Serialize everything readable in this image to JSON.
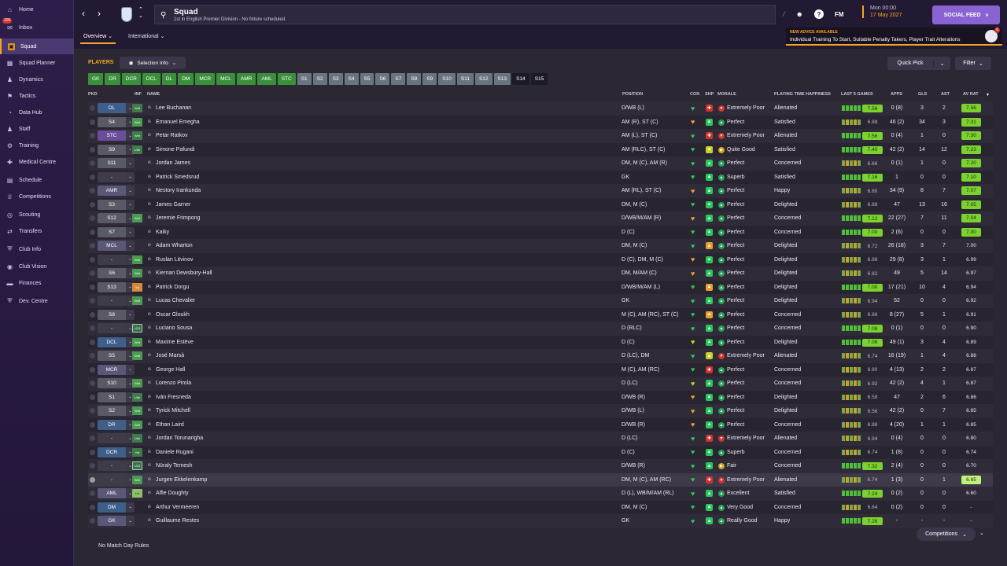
{
  "sidebar": {
    "inbox_badge": "100",
    "items": [
      {
        "label": "Home",
        "icon": "home-icon",
        "glyph": "⌂",
        "active": false
      },
      {
        "label": "Inbox",
        "icon": "inbox-icon",
        "glyph": "✉",
        "active": false
      },
      {
        "label": "Squad",
        "icon": "squad-icon",
        "glyph": "▣",
        "active": true
      },
      {
        "label": "Squad Planner",
        "icon": "squad-planner-icon",
        "glyph": "▦",
        "active": false
      },
      {
        "label": "Dynamics",
        "icon": "dynamics-icon",
        "glyph": "♟",
        "active": false
      },
      {
        "label": "Tactics",
        "icon": "tactics-icon",
        "glyph": "⚑",
        "active": false
      },
      {
        "label": "Data Hub",
        "icon": "data-hub-icon",
        "glyph": "◔",
        "active": false
      },
      {
        "label": "Staff",
        "icon": "staff-icon",
        "glyph": "♟",
        "active": false
      },
      {
        "label": "Training",
        "icon": "training-icon",
        "glyph": "⚙",
        "active": false
      },
      {
        "label": "Medical Centre",
        "icon": "medical-icon",
        "glyph": "✚",
        "active": false
      },
      {
        "label": "Schedule",
        "icon": "schedule-icon",
        "glyph": "▤",
        "active": false
      },
      {
        "label": "Competitions",
        "icon": "trophy-icon",
        "glyph": "♕",
        "active": false
      },
      {
        "label": "Scouting",
        "icon": "scouting-icon",
        "glyph": "◎",
        "active": false
      },
      {
        "label": "Transfers",
        "icon": "transfers-icon",
        "glyph": "⇄",
        "active": false
      },
      {
        "label": "Club Info",
        "icon": "club-info-icon",
        "glyph": "⛨",
        "active": false
      },
      {
        "label": "Club Vision",
        "icon": "club-vision-icon",
        "glyph": "◉",
        "active": false
      },
      {
        "label": "Finances",
        "icon": "finances-icon",
        "glyph": "▬",
        "active": false
      },
      {
        "label": "Dev. Centre",
        "icon": "dev-centre-icon",
        "glyph": "⛨",
        "active": false
      }
    ]
  },
  "header": {
    "title": "Squad",
    "subtitle": "1st in English Premier Division - No fixture scheduled.",
    "fm_logo": "FM",
    "help": "?",
    "date_day": "Mon 00:00",
    "date_full": "17 May 2027",
    "social_feed": "SOCIAL FEED",
    "advice_heading": "NEW ADVICE AVAILABLE",
    "advice_text": "Individual Training To Start, Suitable Penalty Takers, Player Trait Alterations",
    "advice_badge": "6",
    "tabs": [
      "Overview",
      "International"
    ]
  },
  "toolbar": {
    "players_label": "PLAYERS",
    "selection_info": "Selection Info",
    "quick_pick": "Quick Pick",
    "filter": "Filter"
  },
  "positions": [
    {
      "label": "GK",
      "kind": "g"
    },
    {
      "label": "DR",
      "kind": "g"
    },
    {
      "label": "DCR",
      "kind": "g"
    },
    {
      "label": "DCL",
      "kind": "g"
    },
    {
      "label": "DL",
      "kind": "g"
    },
    {
      "label": "DM",
      "kind": "g"
    },
    {
      "label": "MCR",
      "kind": "g"
    },
    {
      "label": "MCL",
      "kind": "g"
    },
    {
      "label": "AMR",
      "kind": "g"
    },
    {
      "label": "AML",
      "kind": "g"
    },
    {
      "label": "STC",
      "kind": "g"
    },
    {
      "label": "S1",
      "kind": "s"
    },
    {
      "label": "S2",
      "kind": "s"
    },
    {
      "label": "S3",
      "kind": "s"
    },
    {
      "label": "S4",
      "kind": "s"
    },
    {
      "label": "S5",
      "kind": "s"
    },
    {
      "label": "S6",
      "kind": "s"
    },
    {
      "label": "S7",
      "kind": "s"
    },
    {
      "label": "S8",
      "kind": "s"
    },
    {
      "label": "S9",
      "kind": "s"
    },
    {
      "label": "S10",
      "kind": "s"
    },
    {
      "label": "S11",
      "kind": "s"
    },
    {
      "label": "S12",
      "kind": "s"
    },
    {
      "label": "S13",
      "kind": "s"
    },
    {
      "label": "S14",
      "kind": "a"
    },
    {
      "label": "S15",
      "kind": "a"
    }
  ],
  "columns": {
    "pkd": "PKD",
    "inf": "INF",
    "name": "NAME",
    "position": "POSITION",
    "con": "CON",
    "shp": "SHP",
    "morale": "MORALE",
    "pth": "PLAYING TIME HAPPINESS",
    "last5": "LAST 5 GAMES",
    "apps": "APPS",
    "gls": "GLS",
    "ast": "AST",
    "avrat": "AV RAT"
  },
  "colors": {
    "accent": "#f5a623",
    "social": "#8a63d2",
    "morale_good": "#27a05a",
    "morale_poor": "#d0342c",
    "morale_ok": "#d4a020",
    "avrat_high": "#7bd12e",
    "avrat_mid": "#bff27a"
  },
  "players": [
    {
      "pkd": "DL",
      "pkdkind": "def",
      "inf": "Wnt",
      "infkind": "un",
      "name": "Lee Buchanan",
      "pos": "D/WB (L)",
      "con": "g",
      "shp": "r",
      "mor": "Extremely Poor",
      "morkind": "poor",
      "pth": "Alienated",
      "l5": "7.56",
      "l5hl": true,
      "apps": "0 (8)",
      "gls": "3",
      "ast": "2",
      "avr": "7.56",
      "avrkind": "high"
    },
    {
      "pkd": "S4",
      "pkdkind": "sub",
      "inf": "Wnt",
      "infkind": "wnt",
      "name": "Emanuel Emegha",
      "pos": "AM (R), ST (C)",
      "con": "o",
      "shp": "g",
      "mor": "Perfect",
      "morkind": "good",
      "pth": "Satisfied",
      "l5": "6.88",
      "l5hl": false,
      "apps": "46 (2)",
      "gls": "34",
      "ast": "3",
      "avr": "7.31",
      "avrkind": "high"
    },
    {
      "pkd": "STC",
      "pkdkind": "att",
      "inf": "Wnt",
      "infkind": "un",
      "name": "Petar Ratkov",
      "pos": "AM (L), ST (C)",
      "con": "g",
      "shp": "r",
      "mor": "Extremely Poor",
      "morkind": "poor",
      "pth": "Alienated",
      "l5": "7.56",
      "l5hl": true,
      "apps": "0 (4)",
      "gls": "1",
      "ast": "0",
      "avr": "7.30",
      "avrkind": "high"
    },
    {
      "pkd": "S9",
      "pkdkind": "sub",
      "inf": "Unh",
      "infkind": "un",
      "name": "Simone Pafundi",
      "pos": "AM (RLC), ST (C)",
      "con": "g",
      "shp": "y",
      "mor": "Quite Good",
      "morkind": "ok",
      "pth": "Satisfied",
      "l5": "7.40",
      "l5hl": true,
      "apps": "42 (2)",
      "gls": "14",
      "ast": "12",
      "avr": "7.23",
      "avrkind": "high"
    },
    {
      "pkd": "S11",
      "pkdkind": "sub",
      "inf": "",
      "infkind": "",
      "name": "Jordan James",
      "pos": "DM, M (C), AM (R)",
      "con": "g",
      "shp": "g",
      "mor": "Perfect",
      "morkind": "good",
      "pth": "Concerned",
      "l5": "6.66",
      "l5hl": false,
      "apps": "0 (1)",
      "gls": "1",
      "ast": "0",
      "avr": "7.20",
      "avrkind": "high"
    },
    {
      "pkd": "-",
      "pkdkind": "none",
      "inf": "",
      "infkind": "",
      "name": "Patrick Smedsrud",
      "pos": "GK",
      "con": "g",
      "shp": "g",
      "mor": "Superb",
      "morkind": "good",
      "pth": "Satisfied",
      "l5": "7.16",
      "l5hl": true,
      "apps": "1",
      "gls": "0",
      "ast": "0",
      "avr": "7.10",
      "avrkind": "high"
    },
    {
      "pkd": "AMR",
      "pkdkind": "mid",
      "inf": "",
      "infkind": "",
      "name": "Nestory Irankunda",
      "pos": "AM (RL), ST (C)",
      "con": "o",
      "shp": "g",
      "mor": "Perfect",
      "morkind": "good",
      "pth": "Happy",
      "l5": "6.80",
      "l5hl": false,
      "apps": "34 (9)",
      "gls": "8",
      "ast": "7",
      "avr": "7.07",
      "avrkind": "high"
    },
    {
      "pkd": "S3",
      "pkdkind": "sub",
      "inf": "",
      "infkind": "",
      "name": "James Garner",
      "pos": "DM, M (C)",
      "con": "g",
      "shp": "g",
      "mor": "Perfect",
      "morkind": "good",
      "pth": "Delighted",
      "l5": "6.88",
      "l5hl": false,
      "apps": "47",
      "gls": "13",
      "ast": "16",
      "avr": "7.05",
      "avrkind": "high"
    },
    {
      "pkd": "S12",
      "pkdkind": "sub",
      "inf": "Wnt",
      "infkind": "wnt",
      "name": "Jeremie Frimpong",
      "pos": "D/WB/M/AM (R)",
      "con": "o",
      "shp": "g",
      "mor": "Perfect",
      "morkind": "good",
      "pth": "Concerned",
      "l5": "7.12",
      "l5hl": true,
      "apps": "22 (27)",
      "gls": "7",
      "ast": "11",
      "avr": "7.04",
      "avrkind": "high"
    },
    {
      "pkd": "S7",
      "pkdkind": "sub",
      "inf": "",
      "infkind": "",
      "name": "Kaiky",
      "pos": "D (C)",
      "con": "g",
      "shp": "g",
      "mor": "Perfect",
      "morkind": "good",
      "pth": "Concerned",
      "l5": "7.00",
      "l5hl": true,
      "apps": "2 (6)",
      "gls": "0",
      "ast": "0",
      "avr": "7.00",
      "avrkind": "high"
    },
    {
      "pkd": "MCL",
      "pkdkind": "mid",
      "inf": "",
      "infkind": "",
      "name": "Adam Wharton",
      "pos": "DM, M (C)",
      "con": "g",
      "shp": "o",
      "mor": "Perfect",
      "morkind": "good",
      "pth": "Delighted",
      "l5": "6.72",
      "l5hl": false,
      "apps": "26 (18)",
      "gls": "3",
      "ast": "7",
      "avr": "7.00",
      "avrkind": "none"
    },
    {
      "pkd": "-",
      "pkdkind": "none",
      "inf": "Wnt",
      "infkind": "wnt",
      "name": "Ruslan Litvinov",
      "pos": "D (C), DM, M (C)",
      "con": "o",
      "shp": "g",
      "mor": "Perfect",
      "morkind": "good",
      "pth": "Delighted",
      "l5": "6.88",
      "l5hl": false,
      "apps": "29 (8)",
      "gls": "3",
      "ast": "1",
      "avr": "6.99",
      "avrkind": "none"
    },
    {
      "pkd": "S6",
      "pkdkind": "sub",
      "inf": "Wnt",
      "infkind": "wnt",
      "name": "Kiernan Dewsbury-Hall",
      "pos": "DM, M/AM (C)",
      "con": "o",
      "shp": "g",
      "mor": "Perfect",
      "morkind": "good",
      "pth": "Delighted",
      "l5": "6.82",
      "l5hl": false,
      "apps": "49",
      "gls": "5",
      "ast": "14",
      "avr": "6.97",
      "avrkind": "none"
    },
    {
      "pkd": "S13",
      "pkdkind": "sub",
      "inf": "Inj",
      "infkind": "inj",
      "name": "Patrick Dorgu",
      "pos": "D/WB/M/AM (L)",
      "con": "g",
      "shp": "o",
      "mor": "Perfect",
      "morkind": "good",
      "pth": "Delighted",
      "l5": "7.00",
      "l5hl": true,
      "apps": "17 (21)",
      "gls": "10",
      "ast": "4",
      "avr": "6.94",
      "avrkind": "none"
    },
    {
      "pkd": "-",
      "pkdkind": "none",
      "inf": "Wnt",
      "infkind": "wnt",
      "name": "Lucas Chevalier",
      "pos": "GK",
      "con": "g",
      "shp": "g",
      "mor": "Perfect",
      "morkind": "good",
      "pth": "Delighted",
      "l5": "6.94",
      "l5hl": false,
      "apps": "52",
      "gls": "0",
      "ast": "0",
      "avr": "6.92",
      "avrkind": "none"
    },
    {
      "pkd": "S8",
      "pkdkind": "sub",
      "inf": "",
      "infkind": "",
      "name": "Oscar Gloukh",
      "pos": "M (C), AM (RC), ST (C)",
      "con": "g",
      "shp": "o",
      "mor": "Perfect",
      "morkind": "good",
      "pth": "Concerned",
      "l5": "6.86",
      "l5hl": false,
      "apps": "8 (27)",
      "gls": "5",
      "ast": "1",
      "avr": "6.91",
      "avrkind": "none"
    },
    {
      "pkd": "-",
      "pkdkind": "none",
      "inf": "U21",
      "infkind": "u21",
      "name": "Luciano Sousa",
      "pos": "D (RLC)",
      "con": "g",
      "shp": "g",
      "mor": "Perfect",
      "morkind": "good",
      "pth": "Concerned",
      "l5": "7.08",
      "l5hl": true,
      "apps": "0 (1)",
      "gls": "0",
      "ast": "0",
      "avr": "6.90",
      "avrkind": "none"
    },
    {
      "pkd": "DCL",
      "pkdkind": "def",
      "inf": "Wnt",
      "infkind": "wnt",
      "name": "Maxime Estève",
      "pos": "D (C)",
      "con": "y",
      "shp": "g",
      "mor": "Perfect",
      "morkind": "good",
      "pth": "Delighted",
      "l5": "7.06",
      "l5hl": true,
      "apps": "49 (1)",
      "gls": "3",
      "ast": "4",
      "avr": "6.89",
      "avrkind": "none"
    },
    {
      "pkd": "S5",
      "pkdkind": "sub",
      "inf": "Wnt",
      "infkind": "wnt",
      "name": "José Marsà",
      "pos": "D (LC), DM",
      "con": "g",
      "shp": "y",
      "mor": "Extremely Poor",
      "morkind": "poor",
      "pth": "Alienated",
      "l5": "6.74",
      "l5hl": false,
      "apps": "16 (19)",
      "gls": "1",
      "ast": "4",
      "avr": "6.88",
      "avrkind": "none"
    },
    {
      "pkd": "MCR",
      "pkdkind": "mid",
      "inf": "",
      "infkind": "",
      "name": "George Hall",
      "pos": "M (C), AM (RC)",
      "con": "g",
      "shp": "r",
      "mor": "Perfect",
      "morkind": "good",
      "pth": "Concerned",
      "l5": "6.80",
      "l5hl": false,
      "apps": "4 (13)",
      "gls": "2",
      "ast": "2",
      "avr": "6.87",
      "avrkind": "none"
    },
    {
      "pkd": "S10",
      "pkdkind": "sub",
      "inf": "Wnt",
      "infkind": "wnt",
      "name": "Lorenzo Pirola",
      "pos": "D (LC)",
      "con": "y",
      "shp": "g",
      "mor": "Perfect",
      "morkind": "good",
      "pth": "Concerned",
      "l5": "6.92",
      "l5hl": false,
      "apps": "42 (2)",
      "gls": "4",
      "ast": "1",
      "avr": "6.87",
      "avrkind": "none"
    },
    {
      "pkd": "S1",
      "pkdkind": "sub",
      "inf": "Unh",
      "infkind": "un",
      "name": "Iván Fresneda",
      "pos": "D/WB (R)",
      "con": "o",
      "shp": "g",
      "mor": "Perfect",
      "morkind": "good",
      "pth": "Delighted",
      "l5": "6.58",
      "l5hl": false,
      "apps": "47",
      "gls": "2",
      "ast": "6",
      "avr": "6.86",
      "avrkind": "none"
    },
    {
      "pkd": "S2",
      "pkdkind": "sub",
      "inf": "Wnt",
      "infkind": "wnt",
      "name": "Tyrick Mitchell",
      "pos": "D/WB (L)",
      "con": "o",
      "shp": "g",
      "mor": "Perfect",
      "morkind": "good",
      "pth": "Delighted",
      "l5": "6.56",
      "l5hl": false,
      "apps": "42 (2)",
      "gls": "0",
      "ast": "7",
      "avr": "6.85",
      "avrkind": "none"
    },
    {
      "pkd": "DR",
      "pkdkind": "def",
      "inf": "Wnt",
      "infkind": "wnt",
      "name": "Ethan Laird",
      "pos": "D/WB (R)",
      "con": "o",
      "shp": "g",
      "mor": "Perfect",
      "morkind": "good",
      "pth": "Concerned",
      "l5": "6.88",
      "l5hl": false,
      "apps": "4 (20)",
      "gls": "1",
      "ast": "1",
      "avr": "6.85",
      "avrkind": "none"
    },
    {
      "pkd": "-",
      "pkdkind": "none",
      "inf": "Unh",
      "infkind": "un",
      "name": "Jordan Torunarigha",
      "pos": "D (LC)",
      "con": "g",
      "shp": "r",
      "mor": "Extremely Poor",
      "morkind": "poor",
      "pth": "Alienated",
      "l5": "6.94",
      "l5hl": false,
      "apps": "0 (4)",
      "gls": "0",
      "ast": "0",
      "avr": "6.80",
      "avrkind": "none"
    },
    {
      "pkd": "DCR",
      "pkdkind": "def",
      "inf": "Yet",
      "infkind": "un",
      "name": "Daniele Rugani",
      "pos": "D (C)",
      "con": "g",
      "shp": "g",
      "mor": "Superb",
      "morkind": "good",
      "pth": "Concerned",
      "l5": "6.74",
      "l5hl": false,
      "apps": "1 (8)",
      "gls": "0",
      "ast": "0",
      "avr": "6.74",
      "avrkind": "none"
    },
    {
      "pkd": "-",
      "pkdkind": "none",
      "inf": "U21",
      "infkind": "u21",
      "name": "Nūraly Temesh",
      "pos": "D/WB (R)",
      "con": "g",
      "shp": "g",
      "mor": "Fair",
      "morkind": "ok",
      "pth": "Concerned",
      "l5": "7.32",
      "l5hl": true,
      "apps": "2 (4)",
      "gls": "0",
      "ast": "0",
      "avr": "6.70",
      "avrkind": "none"
    },
    {
      "pkd": "-",
      "pkdkind": "none",
      "inf": "Wnt",
      "infkind": "wnt",
      "name": "Jurgen Ekkelenkamp",
      "pos": "DM, M (C), AM (RC)",
      "con": "g",
      "shp": "r",
      "mor": "Extremely Poor",
      "morkind": "poor",
      "pth": "Alienated",
      "l5": "6.74",
      "l5hl": false,
      "apps": "1 (3)",
      "gls": "0",
      "ast": "1",
      "avr": "6.65",
      "avrkind": "mid",
      "selected": true
    },
    {
      "pkd": "AML",
      "pkdkind": "mid",
      "inf": "Lst",
      "infkind": "yt",
      "name": "Alfie Doughty",
      "pos": "D (L), WB/M/AM (RL)",
      "con": "g",
      "shp": "g",
      "mor": "Excellent",
      "morkind": "good",
      "pth": "Satisfied",
      "l5": "7.24",
      "l5hl": true,
      "apps": "0 (2)",
      "gls": "0",
      "ast": "0",
      "avr": "6.60",
      "avrkind": "none"
    },
    {
      "pkd": "DM",
      "pkdkind": "def",
      "inf": "",
      "infkind": "",
      "name": "Arthur Vermeeren",
      "pos": "DM, M (C)",
      "con": "g",
      "shp": "g",
      "mor": "Very Good",
      "morkind": "good",
      "pth": "Concerned",
      "l5": "6.64",
      "l5hl": false,
      "apps": "0 (2)",
      "gls": "0",
      "ast": "0",
      "avr": "-",
      "avrkind": "none"
    },
    {
      "pkd": "GK",
      "pkdkind": "mid",
      "inf": "",
      "infkind": "",
      "name": "Guillaume Restes",
      "pos": "GK",
      "con": "g",
      "shp": "g",
      "mor": "Really Good",
      "morkind": "good",
      "pth": "Happy",
      "l5": "7.26",
      "l5hl": true,
      "apps": "-",
      "gls": "-",
      "ast": "-",
      "avr": "-",
      "avrkind": "none"
    }
  ],
  "footer": {
    "match_day_rules": "No Match Day Rules",
    "competitions": "Competitions"
  }
}
